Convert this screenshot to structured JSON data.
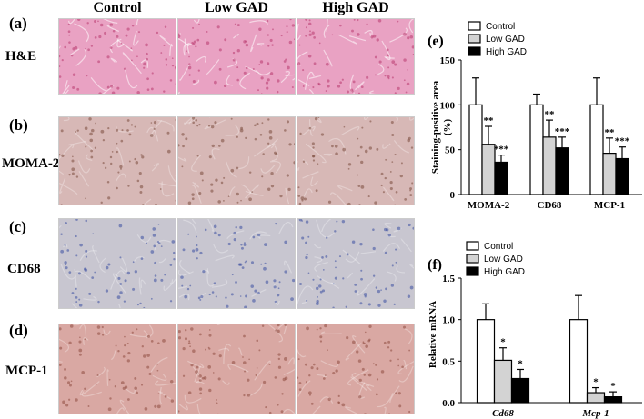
{
  "left_panel": {
    "columns": [
      "Control",
      "Low GAD",
      "High GAD"
    ],
    "rows": [
      {
        "letter": "(a)",
        "name": "H&E",
        "stain": "he"
      },
      {
        "letter": "(b)",
        "name": "MOMA-2",
        "stain": "moma"
      },
      {
        "letter": "(c)",
        "name": "CD68",
        "stain": "cd68"
      },
      {
        "letter": "(d)",
        "name": "MCP-1",
        "stain": "mcp"
      }
    ],
    "stain_colors": {
      "he": "#e9a2c3",
      "moma": "#d7b8b6",
      "cd68": "#c8c6d0",
      "mcp": "#d9a8a3"
    }
  },
  "chart_data": [
    {
      "panel": "(e)",
      "type": "bar",
      "categories": [
        "MOMA-2",
        "CD68",
        "MCP-1"
      ],
      "series": [
        {
          "name": "Control",
          "color": "#ffffff",
          "values": [
            100,
            100,
            100
          ],
          "errors": [
            30,
            12,
            30
          ],
          "sig": [
            "",
            "",
            ""
          ]
        },
        {
          "name": "Low GAD",
          "color": "#d3d3d3",
          "values": [
            56,
            64,
            46
          ],
          "errors": [
            20,
            19,
            17
          ],
          "sig": [
            "**",
            "**",
            "**"
          ]
        },
        {
          "name": "High GAD",
          "color": "#000000",
          "values": [
            36,
            52,
            40
          ],
          "errors": [
            8,
            12,
            13
          ],
          "sig": [
            "***",
            "***",
            "***"
          ]
        }
      ],
      "ylabel": "Staining-positive area\n(%)",
      "ylim": [
        0,
        150
      ],
      "yticks": [
        "0",
        "50",
        "100",
        "150"
      ],
      "legend_position": "top-left"
    },
    {
      "panel": "(f)",
      "type": "bar",
      "categories": [
        "Cd68",
        "Mcp-1"
      ],
      "series": [
        {
          "name": "Control",
          "color": "#ffffff",
          "values": [
            1.0,
            1.0
          ],
          "errors": [
            0.19,
            0.29
          ],
          "sig": [
            "",
            ""
          ]
        },
        {
          "name": "Low GAD",
          "color": "#d3d3d3",
          "values": [
            0.51,
            0.12
          ],
          "errors": [
            0.15,
            0.06
          ],
          "sig": [
            "*",
            "*"
          ]
        },
        {
          "name": "High GAD",
          "color": "#000000",
          "values": [
            0.29,
            0.07
          ],
          "errors": [
            0.11,
            0.06
          ],
          "sig": [
            "*",
            "*"
          ]
        }
      ],
      "ylabel": "Relative mRNA",
      "ylim": [
        0,
        1.5
      ],
      "yticks": [
        "0.0",
        "0.5",
        "1.0",
        "1.5"
      ],
      "legend_position": "top-left"
    }
  ]
}
